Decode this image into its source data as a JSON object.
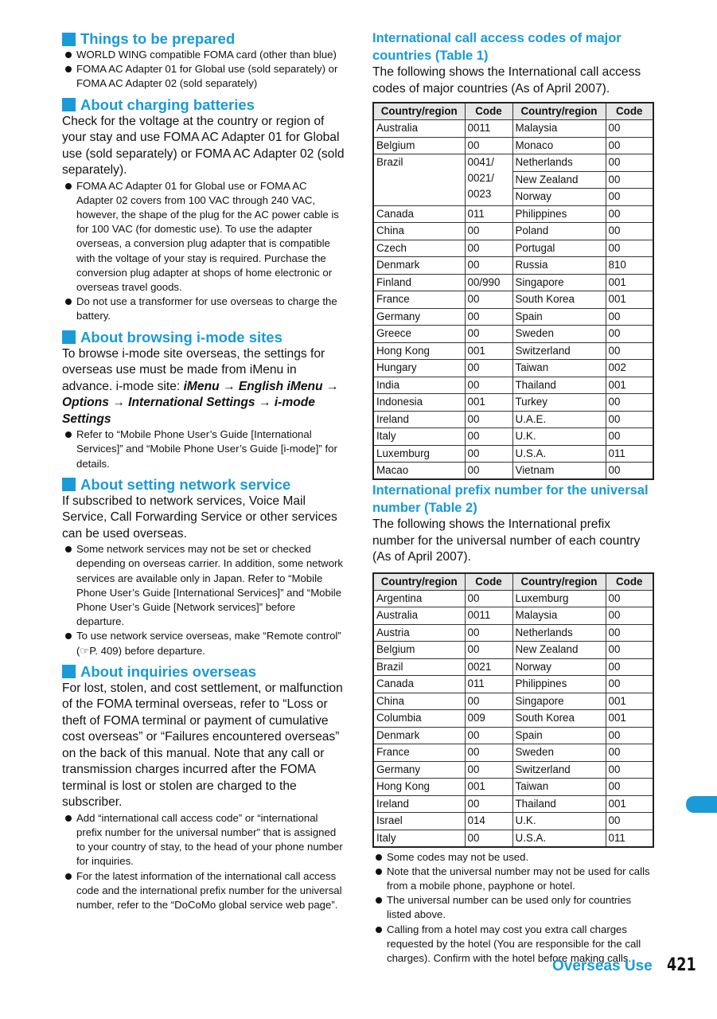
{
  "left": {
    "s1": {
      "title": "Things to be prepared",
      "bullets": [
        "WORLD WING compatible FOMA card (other than blue)",
        "FOMA AC Adapter 01 for Global use (sold separately) or FOMA AC Adapter 02 (sold separately)"
      ]
    },
    "s2": {
      "title": "About charging batteries",
      "para": "Check for the voltage at the country or region of your stay and use FOMA AC Adapter 01 for Global use (sold separately) or FOMA AC Adapter 02 (sold separately).",
      "bullets": [
        "FOMA AC Adapter 01 for Global use or FOMA AC Adapter 02 covers from 100 VAC through 240 VAC, however, the shape of the plug for the AC power cable is for 100 VAC (for domestic use). To use the adapter overseas, a conversion plug adapter that is compatible with the voltage of your stay is required. Purchase the conversion plug adapter at shops of home electronic or overseas travel goods.",
        "Do not use a transformer for use overseas to charge the battery."
      ]
    },
    "s3": {
      "title": "About browsing i-mode sites",
      "para": "To browse i-mode site overseas, the settings for overseas use must be made from iMenu in advance.",
      "path_label": "i-mode site: ",
      "path": "iMenu → English iMenu → Options → International Settings → i-mode Settings",
      "bullets": [
        "Refer to “Mobile Phone User’s Guide [International Services]” and “Mobile Phone User’s Guide [i-mode]” for details."
      ]
    },
    "s4": {
      "title": "About setting network service",
      "para": "If subscribed to network services, Voice Mail Service, Call Forwarding Service or other services can be used overseas.",
      "bullets": [
        "Some network services may not be set or checked depending on overseas carrier. In addition, some network services are available only in Japan. Refer to “Mobile Phone User’s Guide [International Services]” and “Mobile Phone User’s Guide [Network services]” before departure.",
        "To use network service overseas, make “Remote control” (☞P. 409) before departure."
      ]
    },
    "s5": {
      "title": "About inquiries overseas",
      "para": "For lost, stolen, and cost settlement, or malfunction of the FOMA terminal overseas, refer to “Loss or theft of FOMA terminal or payment of cumulative cost overseas” or “Failures encountered overseas” on the back of this manual. Note that any call or transmission charges incurred after the FOMA terminal is lost or stolen are charged to the subscriber.",
      "bullets": [
        "Add “international call access code” or “international prefix number for the universal number” that is assigned to your country of stay, to the head of your phone number for inquiries.",
        "For the latest information of the international call access code and the international prefix number for the universal number, refer to the “DoCoMo global service web page”."
      ]
    }
  },
  "right": {
    "t1": {
      "title": "International call access codes of major countries (Table 1)",
      "intro": "The following shows the International call access codes of major countries (As of April 2007).",
      "headers": [
        "Country/region",
        "Code",
        "Country/region",
        "Code"
      ],
      "left": [
        [
          "Australia",
          "0011"
        ],
        [
          "Belgium",
          "00"
        ],
        [
          "Brazil",
          "0041/ 0021/ 0023",
          3
        ],
        [
          "Canada",
          "011"
        ],
        [
          "China",
          "00"
        ],
        [
          "Czech",
          "00"
        ],
        [
          "Denmark",
          "00"
        ],
        [
          "Finland",
          "00/990"
        ],
        [
          "France",
          "00"
        ],
        [
          "Germany",
          "00"
        ],
        [
          "Greece",
          "00"
        ],
        [
          "Hong Kong",
          "001"
        ],
        [
          "Hungary",
          "00"
        ],
        [
          "India",
          "00"
        ],
        [
          "Indonesia",
          "001"
        ],
        [
          "Ireland",
          "00"
        ],
        [
          "Italy",
          "00"
        ],
        [
          "Luxemburg",
          "00"
        ],
        [
          "Macao",
          "00"
        ]
      ],
      "right": [
        [
          "Malaysia",
          "00"
        ],
        [
          "Monaco",
          "00"
        ],
        [
          "Netherlands",
          "00"
        ],
        [
          "New Zealand",
          "00"
        ],
        [
          "Norway",
          "00"
        ],
        [
          "Philippines",
          "00"
        ],
        [
          "Poland",
          "00"
        ],
        [
          "Portugal",
          "00"
        ],
        [
          "Russia",
          "810"
        ],
        [
          "Singapore",
          "001"
        ],
        [
          "South Korea",
          "001"
        ],
        [
          "Spain",
          "00"
        ],
        [
          "Sweden",
          "00"
        ],
        [
          "Switzerland",
          "00"
        ],
        [
          "Taiwan",
          "002"
        ],
        [
          "Thailand",
          "001"
        ],
        [
          "Turkey",
          "00"
        ],
        [
          "U.A.E.",
          "00"
        ],
        [
          "U.K.",
          "00"
        ],
        [
          "U.S.A.",
          "011"
        ],
        [
          "Vietnam",
          "00"
        ]
      ]
    },
    "t2": {
      "title": "International prefix number for the universal number (Table 2)",
      "intro": "The following shows the International prefix number for the universal number of each country (As of April 2007).",
      "headers": [
        "Country/region",
        "Code",
        "Country/region",
        "Code"
      ],
      "left": [
        [
          "Argentina",
          "00"
        ],
        [
          "Australia",
          "0011"
        ],
        [
          "Austria",
          "00"
        ],
        [
          "Belgium",
          "00"
        ],
        [
          "Brazil",
          "0021"
        ],
        [
          "Canada",
          "011"
        ],
        [
          "China",
          "00"
        ],
        [
          "Columbia",
          "009"
        ],
        [
          "Denmark",
          "00"
        ],
        [
          "France",
          "00"
        ],
        [
          "Germany",
          "00"
        ],
        [
          "Hong Kong",
          "001"
        ],
        [
          "Ireland",
          "00"
        ],
        [
          "Israel",
          "014"
        ],
        [
          "Italy",
          "00"
        ]
      ],
      "right": [
        [
          "Luxemburg",
          "00"
        ],
        [
          "Malaysia",
          "00"
        ],
        [
          "Netherlands",
          "00"
        ],
        [
          "New Zealand",
          "00"
        ],
        [
          "Norway",
          "00"
        ],
        [
          "Philippines",
          "00"
        ],
        [
          "Singapore",
          "001"
        ],
        [
          "South Korea",
          "001"
        ],
        [
          "Spain",
          "00"
        ],
        [
          "Sweden",
          "00"
        ],
        [
          "Switzerland",
          "00"
        ],
        [
          "Taiwan",
          "00"
        ],
        [
          "Thailand",
          "001"
        ],
        [
          "U.K.",
          "00"
        ],
        [
          "U.S.A.",
          "011"
        ]
      ]
    },
    "notes": [
      "Some codes may not be used.",
      "Note that the universal number may not be used for calls from a mobile phone, payphone or hotel.",
      "The universal number can be used only for countries listed above.",
      "Calling from a hotel may cost you extra call charges requested by the hotel (You are responsible for the call charges). Confirm with the hotel before making calls."
    ]
  },
  "footer": {
    "section": "Overseas Use",
    "page": "421"
  },
  "colors": {
    "accent": "#1a9ad6"
  }
}
